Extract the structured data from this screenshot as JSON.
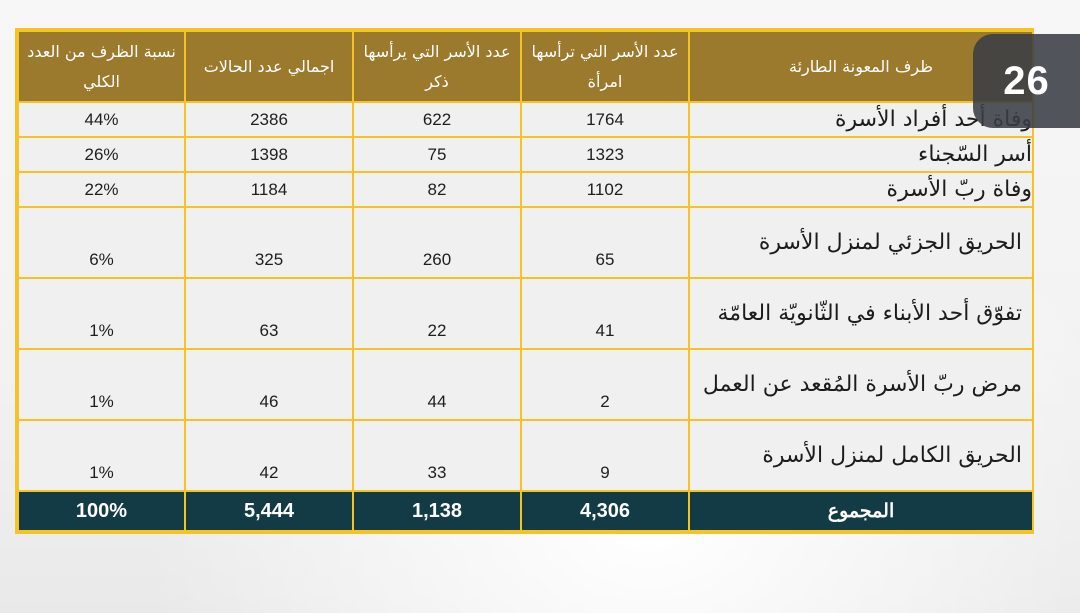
{
  "page_badge": {
    "number": "26"
  },
  "table": {
    "headers": {
      "condition": "ظرف المعونة الطارئة",
      "female_headed": "عدد الأسر التي ترأسها امرأة",
      "male_headed": "عدد الأسر التي يرأسها ذكر",
      "total_cases": "اجمالي عدد الحالات",
      "percentage": "نسبة الظرف من العدد الكلي"
    },
    "rows": [
      {
        "condition": "وفاة أحد أفراد الأسرة",
        "female_headed": "1764",
        "male_headed": "622",
        "total_cases": "2386",
        "percentage": "44%"
      },
      {
        "condition": "أسر السّجناء",
        "female_headed": "1323",
        "male_headed": "75",
        "total_cases": "1398",
        "percentage": "26%"
      },
      {
        "condition": "وفاة ربّ الأسرة",
        "female_headed": "1102",
        "male_headed": "82",
        "total_cases": "1184",
        "percentage": "22%"
      },
      {
        "condition": "الحريق الجزئي لمنزل الأسرة",
        "female_headed": "65",
        "male_headed": "260",
        "total_cases": "325",
        "percentage": "6%"
      },
      {
        "condition": "تفوّق أحد الأبناء في الثّانويّة العامّة",
        "female_headed": "41",
        "male_headed": "22",
        "total_cases": "63",
        "percentage": "1%"
      },
      {
        "condition": "مرض ربّ الأسرة المُقعد عن العمل",
        "female_headed": "2",
        "male_headed": "44",
        "total_cases": "46",
        "percentage": "1%"
      },
      {
        "condition": "الحريق الكامل لمنزل الأسرة",
        "female_headed": "9",
        "male_headed": "33",
        "total_cases": "42",
        "percentage": "1%"
      }
    ],
    "total": {
      "label": "المجموع",
      "female_headed": "4,306",
      "male_headed": "1,138",
      "total_cases": "5,444",
      "percentage": "100%"
    }
  },
  "colors": {
    "header_bg": "#9c7a2d",
    "grid_border": "#f6c324",
    "cell_bg": "#f0f0f0",
    "total_bg": "#123b45",
    "badge_bg": "#3a3e46"
  }
}
